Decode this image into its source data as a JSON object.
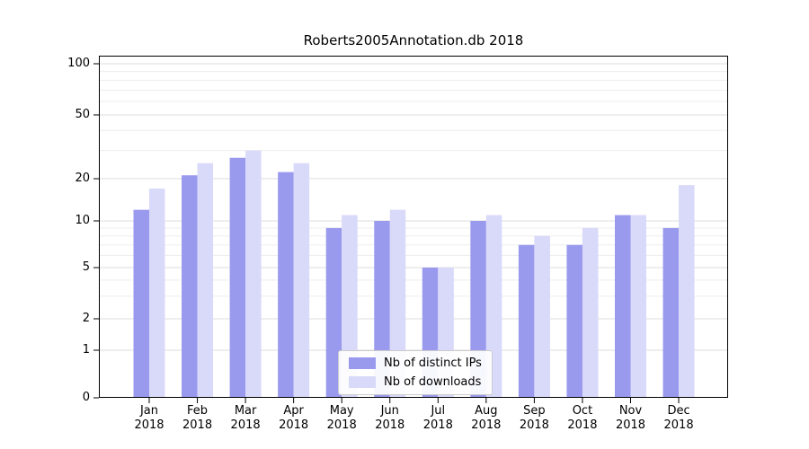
{
  "title": "Roberts2005Annotation.db 2018",
  "legend": {
    "items": [
      {
        "label": "Nb of distinct IPs",
        "color": "#9999ee"
      },
      {
        "label": "Nb of downloads",
        "color": "#d9d9f9"
      }
    ]
  },
  "axes": {
    "y_ticks": [
      100,
      50,
      20,
      10,
      5,
      2,
      1,
      0
    ],
    "x_year": "2018"
  },
  "chart_data": {
    "type": "bar",
    "title": "Roberts2005Annotation.db 2018",
    "categories": [
      "Jan 2018",
      "Feb 2018",
      "Mar 2018",
      "Apr 2018",
      "May 2018",
      "Jun 2018",
      "Jul 2018",
      "Aug 2018",
      "Sep 2018",
      "Oct 2018",
      "Nov 2018",
      "Dec 2018"
    ],
    "series": [
      {
        "name": "Nb of distinct IPs",
        "color": "#9999ee",
        "values": [
          12,
          21,
          27,
          22,
          9,
          10,
          5,
          10,
          7,
          7,
          11,
          9
        ]
      },
      {
        "name": "Nb of downloads",
        "color": "#d9d9f9",
        "values": [
          17,
          25,
          30,
          25,
          11,
          12,
          5,
          11,
          8,
          9,
          11,
          18
        ]
      }
    ],
    "yscale": "symlog",
    "ylim": [
      0,
      100
    ],
    "y_ticks": [
      0,
      1,
      2,
      5,
      10,
      20,
      50,
      100
    ],
    "grid": true,
    "legend_position": "lower center"
  }
}
